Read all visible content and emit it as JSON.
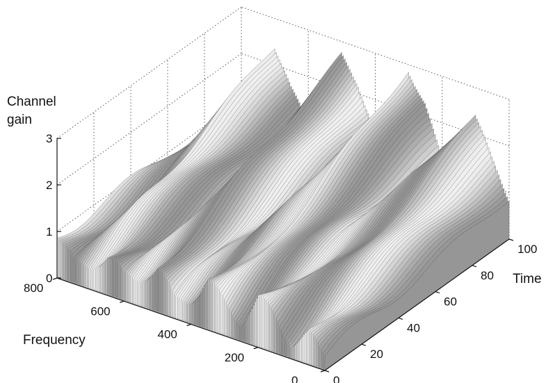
{
  "chart_data": {
    "type": "surface",
    "title": "",
    "zlabel_lines": [
      "Channel",
      "gain"
    ],
    "xlabel": "Frequency",
    "ylabel": "Time",
    "x_range": [
      0,
      800
    ],
    "y_range": [
      0,
      100
    ],
    "z_range": [
      0,
      3
    ],
    "x_ticks": [
      "0",
      "200",
      "400",
      "600",
      "800"
    ],
    "y_ticks": [
      "0",
      "20",
      "40",
      "60",
      "80",
      "100"
    ],
    "z_ticks": [
      "0",
      "1",
      "2",
      "3"
    ],
    "grid": true,
    "colormap": "grayscale",
    "surface_description_values": {
      "frequency_samples": [
        0,
        50,
        100,
        150,
        200,
        250,
        300,
        350,
        400,
        450,
        500,
        550,
        600,
        650,
        700,
        750,
        800
      ],
      "gain_at_time_100": [
        0.9,
        1.6,
        2.4,
        2.0,
        1.2,
        2.3,
        2.9,
        2.0,
        1.4,
        2.2,
        2.7,
        1.8,
        1.1,
        1.6,
        2.4,
        1.5,
        1.0
      ],
      "gain_at_time_0": [
        0.3,
        0.6,
        0.4,
        0.8,
        1.0,
        0.5,
        0.7,
        1.0,
        0.6,
        0.4,
        0.9,
        0.7,
        0.5,
        0.8,
        0.6,
        0.4,
        0.9
      ]
    }
  }
}
